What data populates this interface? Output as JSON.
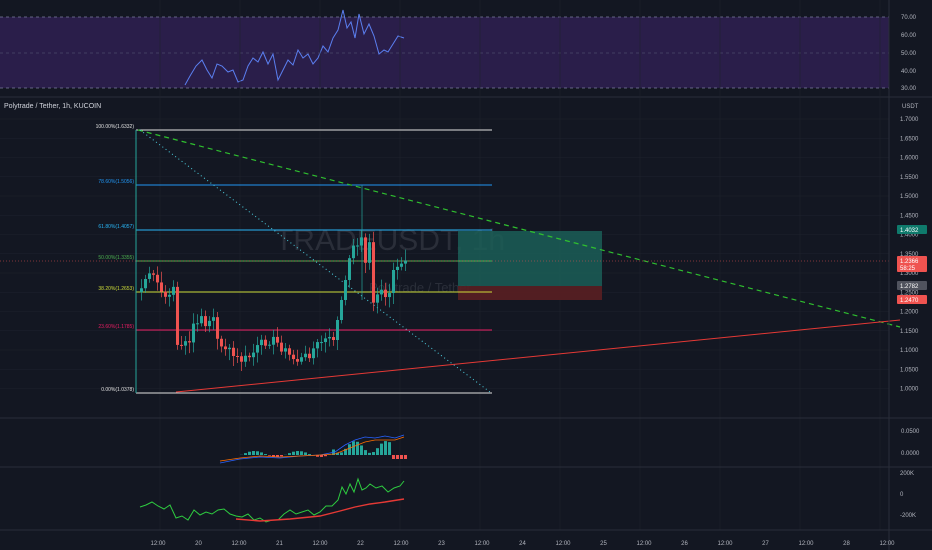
{
  "colors": {
    "background": "#131722",
    "grid": "#1e222d",
    "rsi_band": "#2a1e4a",
    "rsi_line": "#5b7ff0",
    "up": "#26a69a",
    "down": "#ef5350",
    "trend_green": "#2fbf2f",
    "trend_red": "#e53935",
    "diag_dotted": "#4dd0e1",
    "fib_100": "#e0e0e0",
    "fib_786": "#2196f3",
    "fib_618": "#29b6f6",
    "fib_50": "#4caf50",
    "fib_382": "#cddc39",
    "fib_236": "#e91e63",
    "fib_0": "#e0e0e0",
    "obv_line": "#2ecc40",
    "obv_ma": "#e53935",
    "macd_line": "#2962ff",
    "macd_signal": "#ff6d00",
    "tp_zone": "#1b5e57",
    "sl_zone": "#5a1f22"
  },
  "symbol": {
    "title": "Polytrade / Tether, 1h, KUCOIN",
    "watermark_ticker": "TRADEUSDT, 1h",
    "watermark_name": "Polytrade / Tether",
    "quote_currency": "USDT"
  },
  "rsi": {
    "axis_labels": [
      "70.00",
      "60.00",
      "50.00",
      "40.00",
      "30.00"
    ]
  },
  "price_axis": {
    "labels": [
      "1.7000",
      "1.6500",
      "1.6000",
      "1.5500",
      "1.5000",
      "1.4500",
      "1.4000",
      "1.3500",
      "1.3000",
      "1.2500",
      "1.2000",
      "1.1500",
      "1.1000",
      "1.0500",
      "1.0000"
    ],
    "badges": [
      {
        "text": "1.4032",
        "color": "#0f7a6c"
      },
      {
        "text": "1.2366",
        "color": "#ef5350"
      },
      {
        "text": "58:25",
        "color": "#ef5350"
      },
      {
        "text": "1.2782",
        "color": "#50535e"
      },
      {
        "text": "1.2470",
        "color": "#ef5350"
      }
    ]
  },
  "fib_levels": [
    {
      "label": "100.00%(1.6332)",
      "key": "fib_100"
    },
    {
      "label": "78.60%(1.5056)",
      "key": "fib_786"
    },
    {
      "label": "61.80%(1.4057)",
      "key": "fib_618"
    },
    {
      "label": "50.00%(1.3355)",
      "key": "fib_50"
    },
    {
      "label": "38.20%(1.2653)",
      "key": "fib_382"
    },
    {
      "label": "23.60%(1.1785)",
      "key": "fib_236"
    },
    {
      "label": "0.00%(1.0378)",
      "key": "fib_0"
    }
  ],
  "macd": {
    "axis_labels": [
      "0.0500",
      "0.0000"
    ]
  },
  "obv": {
    "axis_labels": [
      "200K",
      "0",
      "-200K"
    ]
  },
  "time_axis": {
    "labels": [
      "12:00",
      "20",
      "12:00",
      "21",
      "12:00",
      "22",
      "12:00",
      "23",
      "12:00",
      "24",
      "12:00",
      "25",
      "12:00",
      "26",
      "12:00",
      "27",
      "12:00",
      "28",
      "12:00"
    ]
  }
}
